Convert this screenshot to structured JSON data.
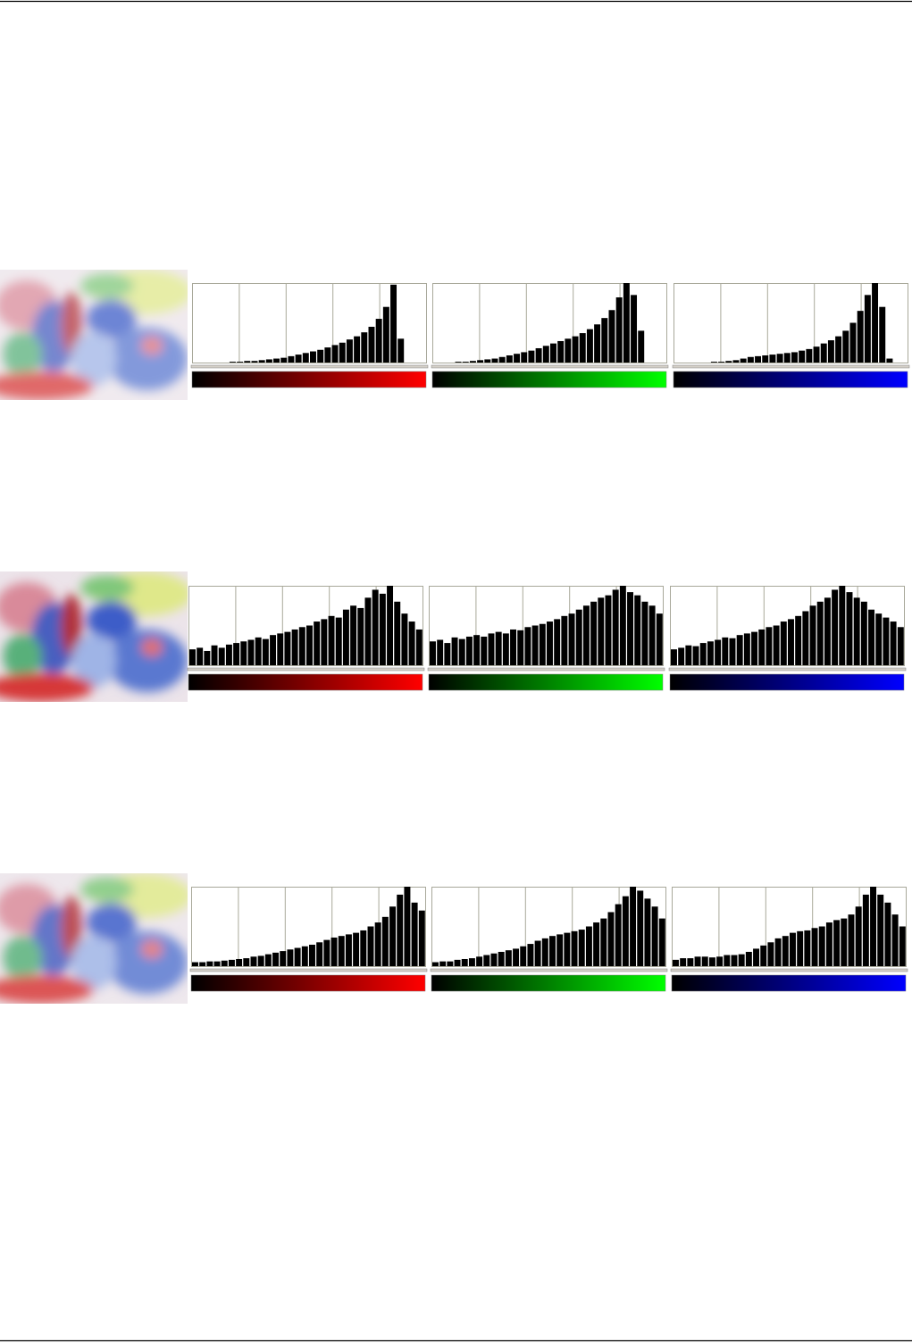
{
  "ylim": [
    0,
    100
  ],
  "rows": [
    {
      "histograms": [
        {
          "color": "#ff0000",
          "values": [
            0,
            0,
            0,
            0,
            0,
            1,
            1,
            2,
            2,
            3,
            4,
            5,
            6,
            8,
            10,
            12,
            14,
            16,
            19,
            22,
            25,
            29,
            33,
            38,
            45,
            55,
            70,
            98,
            30,
            0,
            0,
            0
          ]
        },
        {
          "color": "#00ff00",
          "values": [
            0,
            0,
            0,
            1,
            1,
            2,
            3,
            4,
            5,
            7,
            9,
            11,
            13,
            15,
            18,
            21,
            24,
            27,
            30,
            33,
            37,
            42,
            48,
            56,
            66,
            82,
            100,
            85,
            40,
            0,
            0,
            0
          ]
        },
        {
          "color": "#0000ff",
          "values": [
            0,
            0,
            0,
            0,
            0,
            1,
            1,
            2,
            3,
            5,
            7,
            8,
            9,
            10,
            11,
            12,
            13,
            15,
            17,
            20,
            24,
            28,
            33,
            40,
            50,
            65,
            85,
            100,
            70,
            5,
            0,
            0
          ]
        }
      ]
    },
    {
      "histograms": [
        {
          "color": "#ff0000",
          "values": [
            20,
            22,
            18,
            25,
            22,
            26,
            28,
            30,
            32,
            35,
            33,
            38,
            40,
            42,
            45,
            48,
            50,
            55,
            58,
            62,
            60,
            70,
            75,
            72,
            85,
            95,
            90,
            100,
            80,
            65,
            55,
            45
          ]
        },
        {
          "color": "#00ff00",
          "values": [
            30,
            32,
            28,
            35,
            33,
            36,
            38,
            36,
            40,
            42,
            40,
            45,
            44,
            48,
            50,
            52,
            55,
            58,
            62,
            65,
            70,
            75,
            80,
            85,
            88,
            95,
            100,
            92,
            88,
            80,
            75,
            65
          ]
        },
        {
          "color": "#0000ff",
          "values": [
            20,
            22,
            25,
            24,
            28,
            30,
            32,
            35,
            34,
            38,
            40,
            42,
            45,
            48,
            50,
            55,
            58,
            62,
            68,
            75,
            80,
            85,
            95,
            100,
            92,
            85,
            80,
            70,
            65,
            60,
            55,
            48
          ]
        }
      ]
    },
    {
      "histograms": [
        {
          "color": "#ff0000",
          "values": [
            5,
            5,
            6,
            6,
            7,
            8,
            9,
            10,
            12,
            13,
            15,
            17,
            19,
            21,
            23,
            25,
            27,
            30,
            33,
            36,
            38,
            40,
            42,
            45,
            50,
            55,
            62,
            75,
            90,
            100,
            80,
            70
          ]
        },
        {
          "color": "#00ff00",
          "values": [
            5,
            6,
            6,
            8,
            9,
            10,
            12,
            14,
            16,
            18,
            20,
            22,
            25,
            28,
            32,
            35,
            38,
            40,
            42,
            44,
            46,
            50,
            55,
            60,
            68,
            78,
            88,
            100,
            95,
            85,
            75,
            60
          ]
        },
        {
          "color": "#0000ff",
          "values": [
            8,
            10,
            10,
            12,
            12,
            11,
            12,
            14,
            14,
            15,
            18,
            22,
            26,
            30,
            35,
            38,
            42,
            44,
            45,
            48,
            50,
            55,
            58,
            60,
            65,
            75,
            90,
            100,
            90,
            80,
            65,
            50
          ]
        }
      ]
    }
  ]
}
